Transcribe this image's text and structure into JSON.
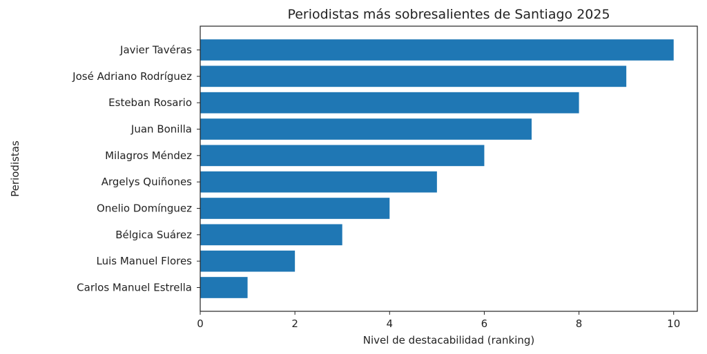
{
  "chart_data": {
    "type": "bar",
    "orientation": "horizontal",
    "title": "Periodistas más sobresalientes de Santiago 2025",
    "xlabel": "Nivel de destacabilidad (ranking)",
    "ylabel": "Periodistas",
    "categories": [
      "Carlos Manuel Estrella",
      "Luis Manuel Flores",
      "Bélgica Suárez",
      "Onelio Domínguez",
      "Argelys Quiñones",
      "Milagros Méndez",
      "Juan Bonilla",
      "Esteban Rosario",
      "José Adriano Rodríguez",
      "Javier Tavéras"
    ],
    "values": [
      1,
      2,
      3,
      4,
      5,
      6,
      7,
      8,
      9,
      10
    ],
    "xlim": [
      0,
      10.5
    ],
    "xticks": [
      0,
      2,
      4,
      6,
      8,
      10
    ],
    "grid": false,
    "bar_color": "#1f77b4"
  }
}
